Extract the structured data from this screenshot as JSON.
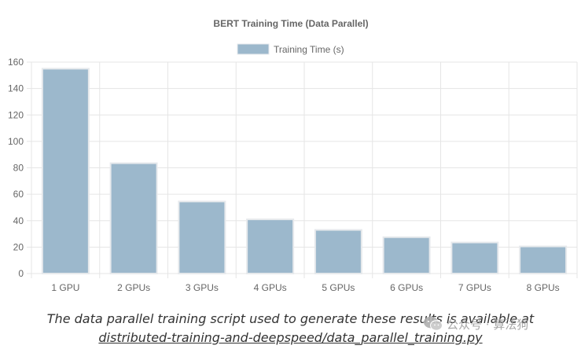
{
  "chart_data": {
    "type": "bar",
    "title": "BERT Training Time (Data Parallel)",
    "legend": {
      "position": "top",
      "label": "Training Time (s)"
    },
    "categories": [
      "1 GPU",
      "2 GPUs",
      "3 GPUs",
      "4 GPUs",
      "5 GPUs",
      "6 GPUs",
      "7 GPUs",
      "8 GPUs"
    ],
    "series": [
      {
        "name": "Training Time (s)",
        "values": [
          155,
          83.5,
          54.5,
          41,
          33,
          27.5,
          23.5,
          20.5
        ]
      }
    ],
    "yticks": [
      "0",
      "20",
      "40",
      "60",
      "80",
      "100",
      "120",
      "140",
      "160"
    ],
    "ylim": [
      0,
      160
    ],
    "grid": true,
    "colors": {
      "bar_fill": "#9cb8cc",
      "bar_border": "#e6e9ec",
      "grid": "#e5e5e5",
      "text": "#666666"
    }
  },
  "caption": {
    "line1": "The data parallel training script used to generate these results is available at",
    "line2": "distributed-training-and-deepspeed/data_parallel_training.py"
  },
  "watermark": {
    "text": "公众号 · 算法狗",
    "icon": "wechat-icon"
  }
}
